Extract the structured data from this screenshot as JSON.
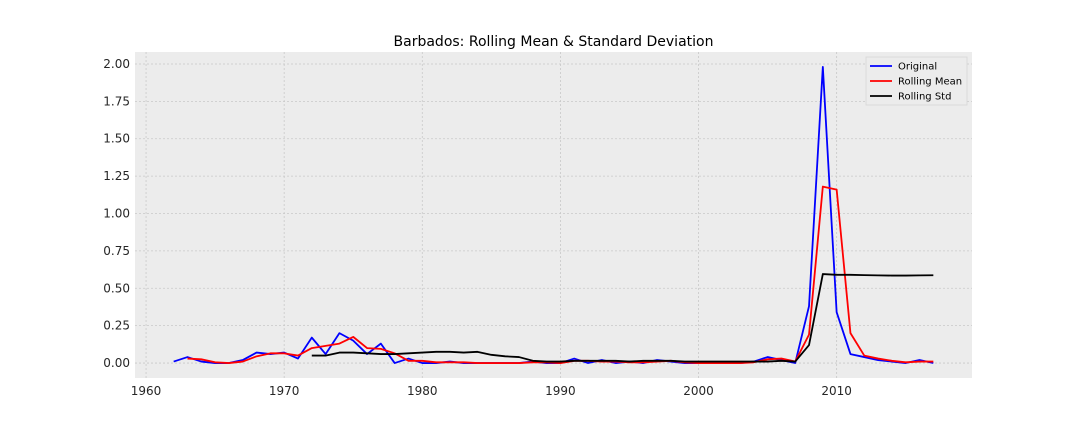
{
  "chart_data": {
    "type": "line",
    "title": "Barbados: Rolling Mean & Standard Deviation",
    "xlabel": "",
    "ylabel": "",
    "xlim": [
      1959.2,
      2019.8
    ],
    "ylim": [
      -0.1,
      2.08
    ],
    "xticks": [
      1960,
      1970,
      1980,
      1990,
      2000,
      2010
    ],
    "xtick_labels": [
      "1960",
      "1970",
      "1980",
      "1990",
      "2000",
      "2010"
    ],
    "yticks": [
      0.0,
      0.25,
      0.5,
      0.75,
      1.0,
      1.25,
      1.5,
      1.75,
      2.0
    ],
    "ytick_labels": [
      "0.00",
      "0.25",
      "0.50",
      "0.75",
      "1.00",
      "1.25",
      "1.50",
      "1.75",
      "2.00"
    ],
    "grid": true,
    "legend_position": "top-right",
    "colors": {
      "background": "#ececec",
      "grid": "#c8c8c8"
    },
    "series": [
      {
        "name": "Original",
        "color": "#0000ff",
        "x": [
          1962,
          1963,
          1964,
          1965,
          1966,
          1967,
          1968,
          1969,
          1970,
          1971,
          1972,
          1973,
          1974,
          1975,
          1976,
          1977,
          1978,
          1979,
          1980,
          1981,
          1982,
          1983,
          1984,
          1985,
          1986,
          1987,
          1988,
          1989,
          1990,
          1991,
          1992,
          1993,
          1994,
          1995,
          1996,
          1997,
          1998,
          1999,
          2000,
          2001,
          2002,
          2003,
          2004,
          2005,
          2006,
          2007,
          2008,
          2009,
          2010,
          2011,
          2012,
          2013,
          2014,
          2015,
          2016,
          2017
        ],
        "y": [
          0.01,
          0.04,
          0.01,
          0.0,
          0.0,
          0.02,
          0.07,
          0.06,
          0.07,
          0.03,
          0.17,
          0.06,
          0.2,
          0.15,
          0.06,
          0.13,
          0.0,
          0.03,
          0.0,
          0.0,
          0.01,
          0.0,
          0.0,
          0.0,
          0.0,
          0.0,
          0.01,
          0.0,
          0.0,
          0.03,
          0.0,
          0.02,
          0.0,
          0.01,
          0.0,
          0.02,
          0.01,
          0.0,
          0.0,
          0.0,
          0.0,
          0.0,
          0.01,
          0.04,
          0.02,
          0.0,
          0.38,
          1.98,
          0.34,
          0.06,
          0.04,
          0.02,
          0.01,
          0.0,
          0.02,
          0.0
        ]
      },
      {
        "name": "Rolling Mean",
        "color": "#ff0000",
        "x": [
          1963,
          1964,
          1965,
          1966,
          1967,
          1968,
          1969,
          1970,
          1971,
          1972,
          1973,
          1974,
          1975,
          1976,
          1977,
          1978,
          1979,
          1980,
          1981,
          1982,
          1983,
          1984,
          1985,
          1986,
          1987,
          1988,
          1989,
          1990,
          1991,
          1992,
          1993,
          1994,
          1995,
          1996,
          1997,
          1998,
          1999,
          2000,
          2001,
          2002,
          2003,
          2004,
          2005,
          2006,
          2007,
          2008,
          2009,
          2010,
          2011,
          2012,
          2013,
          2014,
          2015,
          2016,
          2017
        ],
        "y": [
          0.03,
          0.025,
          0.005,
          0.0,
          0.01,
          0.045,
          0.065,
          0.065,
          0.05,
          0.1,
          0.115,
          0.13,
          0.175,
          0.1,
          0.095,
          0.065,
          0.015,
          0.015,
          0.005,
          0.005,
          0.005,
          0.0,
          0.0,
          0.0,
          0.0,
          0.005,
          0.005,
          0.0,
          0.015,
          0.015,
          0.01,
          0.01,
          0.005,
          0.005,
          0.01,
          0.015,
          0.005,
          0.0,
          0.0,
          0.0,
          0.0,
          0.005,
          0.025,
          0.03,
          0.01,
          0.19,
          1.18,
          1.16,
          0.2,
          0.05,
          0.03,
          0.015,
          0.005,
          0.01,
          0.01
        ]
      },
      {
        "name": "Rolling Std",
        "color": "#000000",
        "x": [
          1972,
          1973,
          1974,
          1975,
          1976,
          1977,
          1978,
          1979,
          1980,
          1981,
          1982,
          1983,
          1984,
          1985,
          1986,
          1987,
          1988,
          1989,
          1990,
          1991,
          1992,
          1993,
          1994,
          1995,
          1996,
          1997,
          1998,
          1999,
          2000,
          2001,
          2002,
          2003,
          2004,
          2005,
          2006,
          2007,
          2008,
          2009,
          2010,
          2011,
          2012,
          2013,
          2014,
          2015,
          2016,
          2017
        ],
        "y": [
          0.05,
          0.05,
          0.07,
          0.07,
          0.065,
          0.06,
          0.06,
          0.065,
          0.07,
          0.075,
          0.075,
          0.07,
          0.075,
          0.055,
          0.045,
          0.04,
          0.015,
          0.01,
          0.01,
          0.015,
          0.015,
          0.015,
          0.015,
          0.01,
          0.015,
          0.015,
          0.015,
          0.01,
          0.01,
          0.01,
          0.01,
          0.01,
          0.01,
          0.01,
          0.015,
          0.01,
          0.12,
          0.595,
          0.59,
          0.59,
          0.588,
          0.586,
          0.585,
          0.585,
          0.586,
          0.587
        ]
      }
    ]
  }
}
